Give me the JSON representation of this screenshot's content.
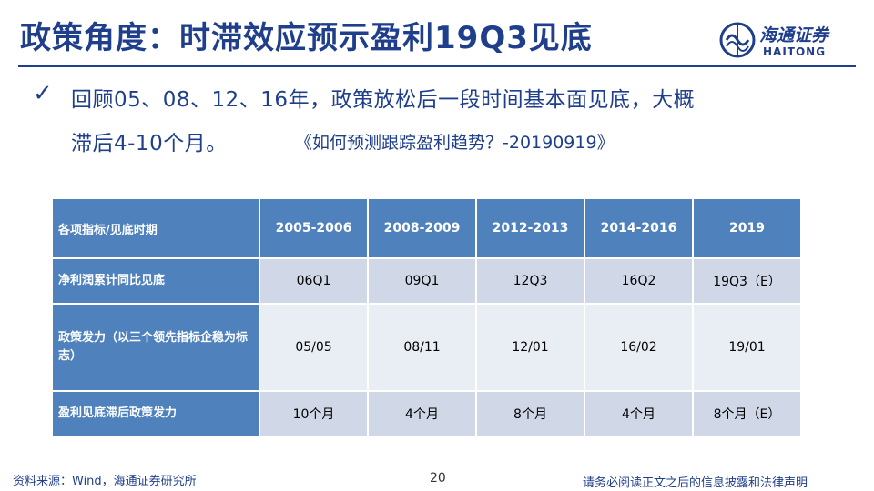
{
  "slide": {
    "title": "政策角度：时滞效应预示盈利19Q3见底",
    "page_number": "20"
  },
  "logo": {
    "name_cn": "海通证券",
    "name_en": "HAITONG",
    "accent_color": "#1f3f8c"
  },
  "bullet": {
    "icon": "check-icon",
    "line1": "回顾05、08、12、16年，政策放松后一段时间基本面见底，大概",
    "line2": "滞后4-10个月。",
    "reference": "《如何预测跟踪盈利趋势？-20190919》"
  },
  "table": {
    "header_color": "#4f81bd",
    "row_colors": [
      "#d0d8e8",
      "#e9edf4"
    ],
    "corner_label": "各项指标/见底时期",
    "columns": [
      "2005-2006",
      "2008-2009",
      "2012-2013",
      "2014-2016",
      "2019"
    ],
    "rows": [
      {
        "label": "净利润累计同比见底",
        "values": [
          "06Q1",
          "09Q1",
          "12Q3",
          "16Q2",
          "19Q3（E）"
        ]
      },
      {
        "label": "政策发力（以三个领先指标企稳为标志）",
        "values": [
          "05/05",
          "08/11",
          "12/01",
          "16/02",
          "19/01"
        ]
      },
      {
        "label": "盈利见底滞后政策发力",
        "values": [
          "10个月",
          "4个月",
          "8个月",
          "4个月",
          "8个月（E）"
        ]
      }
    ]
  },
  "footer": {
    "source": "资料来源：Wind，海通证券研究所",
    "disclaimer": "请务必阅读正文之后的信息披露和法律声明"
  }
}
